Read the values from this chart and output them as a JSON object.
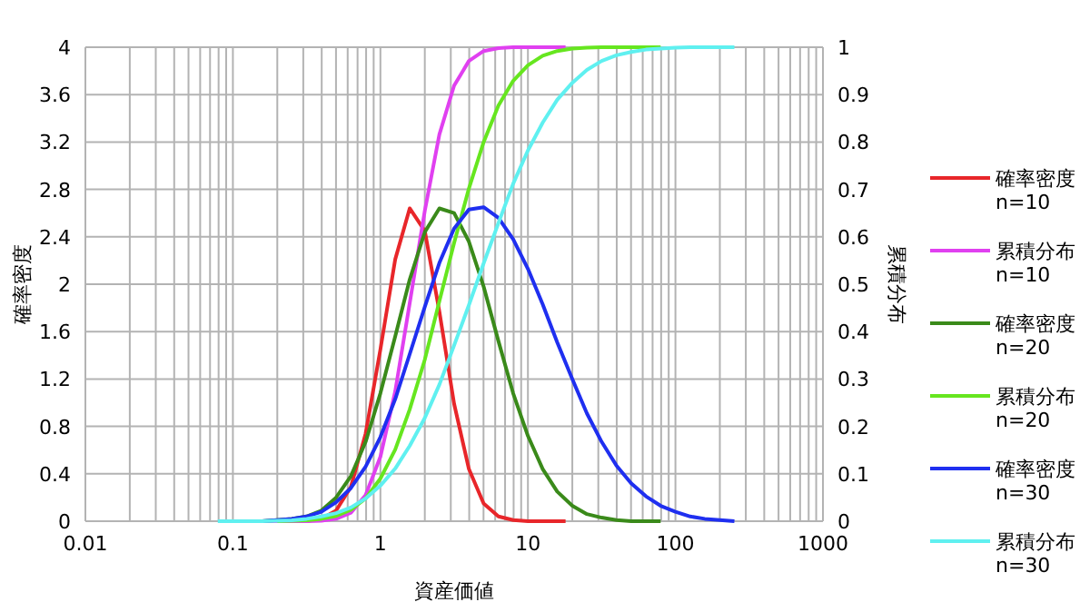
{
  "chart_data": {
    "type": "line",
    "xlabel": "資産価値",
    "ylabel": "確率密度",
    "y2label": "累積分布",
    "log": "x",
    "grid": true,
    "legend": "right",
    "xlim": [
      0.01,
      1000
    ],
    "xticks": [
      0.01,
      0.1,
      1,
      10,
      100,
      1000
    ],
    "ylim": [
      0,
      4
    ],
    "yticks": [
      0,
      0.4,
      0.8,
      1.2,
      1.6,
      2,
      2.4,
      2.8,
      3.2,
      3.6,
      4
    ],
    "y2lim": [
      0,
      1
    ],
    "y2ticks": [
      0,
      0.1,
      0.2,
      0.3,
      0.4,
      0.5,
      0.6,
      0.7,
      0.8,
      0.9,
      1
    ],
    "series": [
      {
        "name": "確率密度 n=10",
        "color": "#e8262a",
        "x": [
          0.316,
          0.398,
          0.501,
          0.631,
          0.794,
          1,
          1.26,
          1.58,
          2,
          2.51,
          3.16,
          3.98,
          5.01,
          6.31,
          7.94,
          10,
          12.6,
          15.8,
          18
        ],
        "values": [
          0,
          0.02,
          0.09,
          0.29,
          0.74,
          1.45,
          2.21,
          2.64,
          2.45,
          1.77,
          0.99,
          0.44,
          0.15,
          0.04,
          0.01,
          0,
          0,
          0,
          0
        ]
      },
      {
        "name": "累積分布 n=10",
        "color": "#e040f0",
        "axis": "y2",
        "x": [
          0.158,
          0.2,
          0.251,
          0.316,
          0.398,
          0.501,
          0.631,
          0.794,
          1,
          1.26,
          1.58,
          2,
          2.51,
          3.16,
          3.98,
          5.01,
          6.31,
          7.94,
          10,
          12.6,
          15.8,
          18
        ],
        "values": [
          0,
          0,
          0,
          0,
          0.001,
          0.005,
          0.018,
          0.055,
          0.136,
          0.274,
          0.46,
          0.655,
          0.816,
          0.919,
          0.971,
          0.992,
          0.998,
          1,
          1,
          1,
          1,
          1
        ]
      },
      {
        "name": "確率密度 n=20",
        "color": "#3a8a1a",
        "x": [
          0.158,
          0.2,
          0.251,
          0.316,
          0.398,
          0.501,
          0.631,
          0.794,
          1,
          1.26,
          1.58,
          2,
          2.51,
          3.16,
          3.98,
          5.01,
          6.31,
          7.94,
          10,
          12.6,
          15.8,
          20,
          25.1,
          31.6,
          39.8,
          50.1,
          63.1,
          79.4
        ],
        "values": [
          0,
          0.01,
          0.02,
          0.04,
          0.09,
          0.2,
          0.38,
          0.67,
          1.08,
          1.56,
          2.04,
          2.44,
          2.64,
          2.6,
          2.36,
          1.98,
          1.52,
          1.08,
          0.72,
          0.44,
          0.25,
          0.13,
          0.06,
          0.03,
          0.01,
          0,
          0,
          0
        ]
      },
      {
        "name": "累積分布 n=20",
        "color": "#66e61f",
        "axis": "y2",
        "x": [
          0.2,
          0.251,
          0.316,
          0.398,
          0.501,
          0.631,
          0.794,
          1,
          1.26,
          1.58,
          2,
          2.51,
          3.16,
          3.98,
          5.01,
          6.31,
          7.94,
          10,
          12.6,
          15.8,
          20,
          25.1,
          31.6,
          39.8,
          50.1,
          63.1,
          79.4
        ],
        "values": [
          0,
          0.001,
          0.002,
          0.005,
          0.011,
          0.024,
          0.048,
          0.09,
          0.151,
          0.236,
          0.341,
          0.464,
          0.587,
          0.702,
          0.8,
          0.877,
          0.929,
          0.962,
          0.982,
          0.992,
          0.997,
          0.999,
          1,
          1,
          1,
          1,
          1
        ]
      },
      {
        "name": "確率密度 n=30",
        "color": "#1f2ff0",
        "x": [
          0.126,
          0.158,
          0.2,
          0.251,
          0.316,
          0.398,
          0.501,
          0.631,
          0.794,
          1,
          1.26,
          1.58,
          2,
          2.51,
          3.16,
          3.98,
          5.01,
          6.31,
          7.94,
          10,
          12.6,
          15.8,
          20,
          25.1,
          31.6,
          39.8,
          50.1,
          63.1,
          79.4,
          100,
          126,
          158,
          200,
          251
        ],
        "values": [
          0,
          0,
          0.01,
          0.02,
          0.04,
          0.08,
          0.16,
          0.28,
          0.46,
          0.71,
          1.03,
          1.41,
          1.81,
          2.18,
          2.47,
          2.63,
          2.65,
          2.56,
          2.38,
          2.13,
          1.83,
          1.51,
          1.2,
          0.91,
          0.67,
          0.47,
          0.32,
          0.21,
          0.13,
          0.08,
          0.04,
          0.02,
          0.01,
          0
        ]
      },
      {
        "name": "累積分布 n=30",
        "color": "#5ff0f0",
        "axis": "y2",
        "x": [
          0.079,
          0.1,
          0.126,
          0.158,
          0.2,
          0.251,
          0.316,
          0.398,
          0.501,
          0.631,
          0.794,
          1,
          1.26,
          1.58,
          2,
          2.51,
          3.16,
          3.98,
          5.01,
          6.31,
          7.94,
          10,
          12.6,
          15.8,
          20,
          25.1,
          31.6,
          39.8,
          50.1,
          63.1,
          79.4,
          100,
          126,
          158,
          200,
          251
        ],
        "values": [
          0,
          0,
          0,
          0,
          0.001,
          0.002,
          0.005,
          0.01,
          0.017,
          0.029,
          0.048,
          0.075,
          0.111,
          0.159,
          0.218,
          0.288,
          0.371,
          0.456,
          0.544,
          0.629,
          0.712,
          0.782,
          0.841,
          0.889,
          0.925,
          0.952,
          0.971,
          0.983,
          0.99,
          0.995,
          0.997,
          0.999,
          1,
          1,
          1,
          1
        ]
      }
    ]
  }
}
